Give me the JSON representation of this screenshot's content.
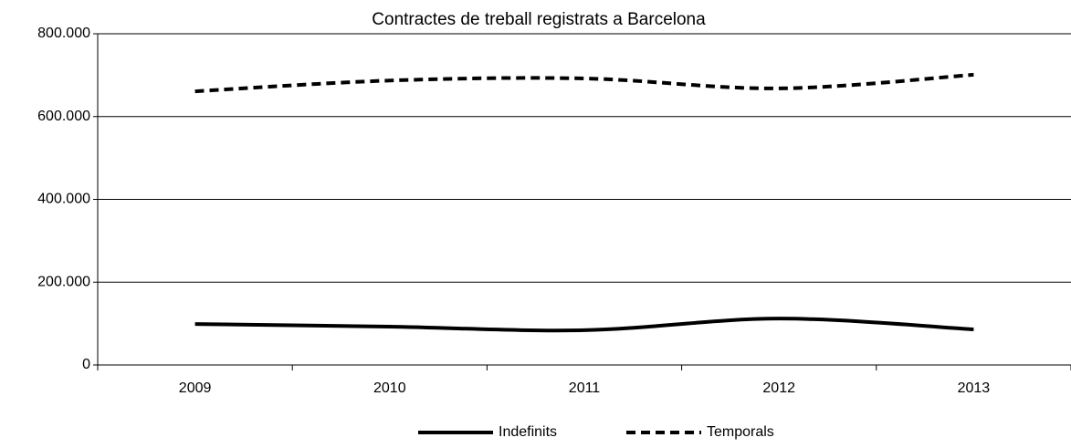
{
  "chart_data": {
    "type": "line",
    "title": "Contractes de treball registrats a Barcelona",
    "categories": [
      "2009",
      "2010",
      "2011",
      "2012",
      "2013"
    ],
    "series": [
      {
        "name": "Indefinits",
        "color": "#000000",
        "dash": "solid",
        "values": [
          99000,
          92500,
          84000,
          112000,
          86000
        ]
      },
      {
        "name": "Temporals",
        "color": "#000000",
        "dash": "dashed",
        "values": [
          661000,
          687000,
          692000,
          668000,
          701000
        ]
      }
    ],
    "ylim": [
      0,
      800000
    ],
    "yticks": [
      0,
      {
        "value": 200000,
        "label": "200.000"
      },
      {
        "value": 400000,
        "label": "400.000"
      },
      {
        "value": 600000,
        "label": "600.000"
      },
      {
        "value": 800000,
        "label": "800.000"
      }
    ],
    "grid": true,
    "smooth": true,
    "legend": "bottom"
  }
}
